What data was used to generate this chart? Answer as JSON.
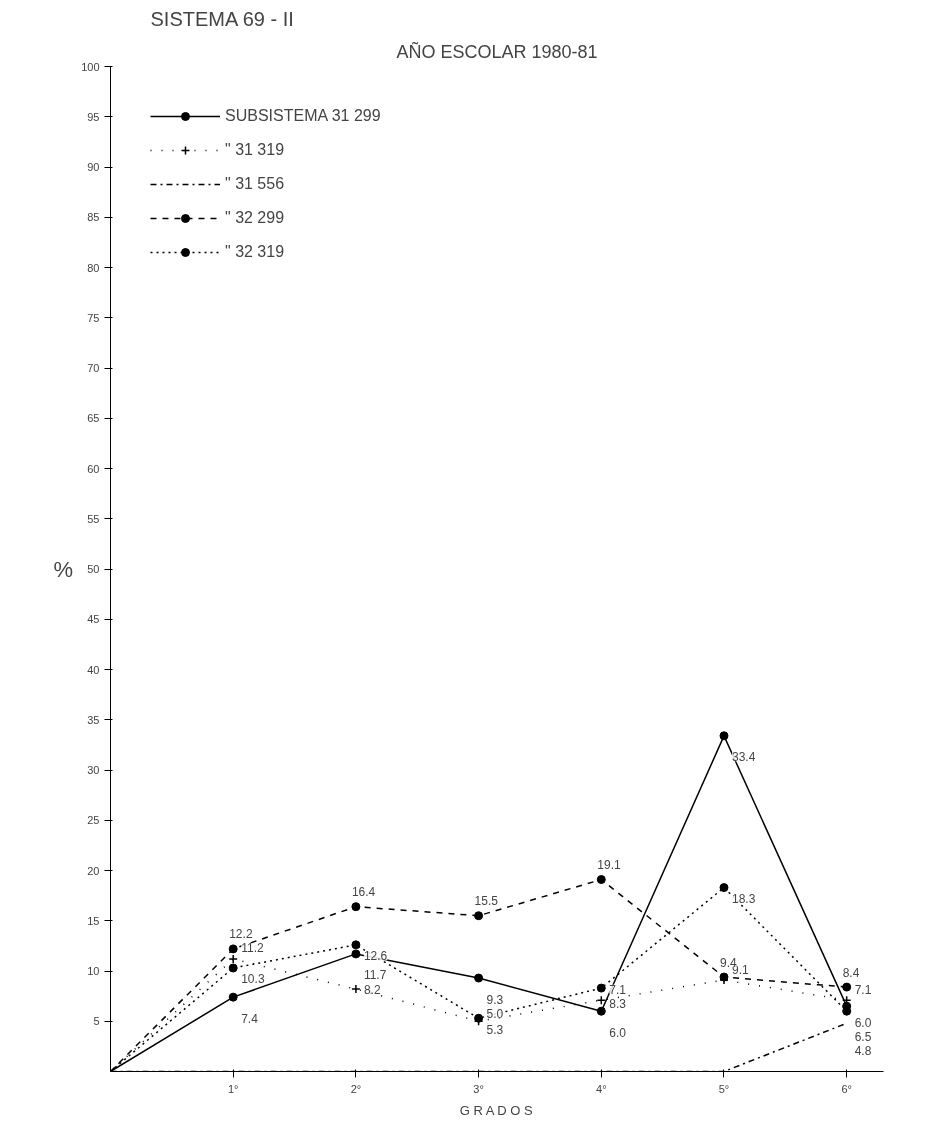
{
  "chart_data": {
    "type": "line",
    "title": "SISTEMA 69 - II",
    "subtitle": "AÑO ESCOLAR 1980-81",
    "xlabel": "G R A D O S",
    "ylabel": "%",
    "categories": [
      null,
      "1°",
      "2°",
      "3°",
      "4°",
      "5°",
      "6°"
    ],
    "series": [
      {
        "name": "SUBSISTEMA 31 299",
        "color": "#000000",
        "line_style": "solid",
        "marker": "circle",
        "values": [
          0,
          7.4,
          11.7,
          9.3,
          6.0,
          33.4,
          6.5
        ],
        "value_labels": [
          null,
          "7.4",
          "11.7",
          "9.3",
          "6.0",
          "33.4",
          "6.5"
        ]
      },
      {
        "name": "\" 31 319",
        "color": "#000000",
        "line_style": "crosses",
        "marker": "cross",
        "values": [
          0,
          11.2,
          8.2,
          5.0,
          7.1,
          9.1,
          7.1
        ],
        "value_labels": [
          null,
          "11.2",
          "8.2",
          "5.0",
          "7.1",
          "9.1",
          "7.1"
        ]
      },
      {
        "name": "\" 31 556",
        "color": "#000000",
        "line_style": "dashdot",
        "marker": "none",
        "values": [
          0,
          0,
          0,
          0,
          0,
          0,
          4.8
        ],
        "value_labels": [
          null,
          null,
          null,
          null,
          null,
          null,
          "4.8"
        ]
      },
      {
        "name": "\" 32 299",
        "color": "#000000",
        "line_style": "dashed",
        "marker": "circle",
        "values": [
          0,
          12.2,
          16.4,
          15.5,
          19.1,
          9.4,
          8.4
        ],
        "value_labels": [
          null,
          "12.2",
          "16.4",
          "15.5",
          "19.1",
          "9.4",
          "8.4"
        ]
      },
      {
        "name": "\" 32 319",
        "color": "#000000",
        "line_style": "dotted",
        "marker": "circle",
        "values": [
          0,
          10.3,
          12.6,
          5.3,
          8.3,
          18.3,
          6.0
        ],
        "value_labels": [
          null,
          "10.3",
          "12.6",
          "5.3",
          "8.3",
          "18.3",
          "6.0"
        ]
      }
    ],
    "ylim": [
      0,
      100
    ],
    "yticks": [
      5,
      10,
      15,
      20,
      25,
      30,
      35,
      40,
      45,
      50,
      55,
      60,
      65,
      70,
      75,
      80,
      85,
      90,
      95,
      100
    ],
    "grid": false,
    "legend": "top left"
  }
}
